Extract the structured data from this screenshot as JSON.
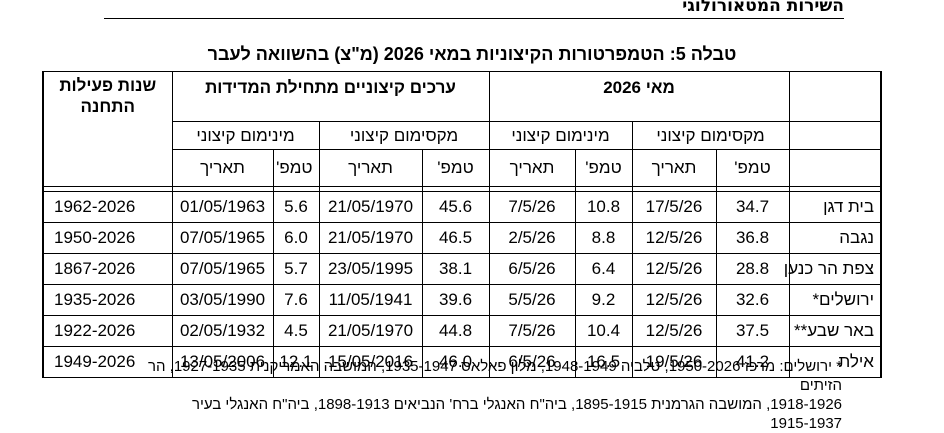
{
  "header": {
    "org": "השירות המטאורולוגי"
  },
  "table": {
    "title": "טבלה 5: הטמפרטורות הקיצוניות במאי 2026 (מ\"צ) בהשוואה לעבר",
    "group_may": "מאי 2026",
    "group_records": "ערכים קיצוניים מתחילת המדידות",
    "years_header": "שנות פעילות התחנה",
    "sub_max": "מקסימום קיצוני",
    "sub_min": "מינימום קיצוני",
    "col_temp": "טמפ'",
    "col_date": "תאריך",
    "rows": [
      {
        "station": "בית דגן",
        "may_max_t": "34.7",
        "may_max_d": "17/5/26",
        "may_min_t": "10.8",
        "may_min_d": "7/5/26",
        "rec_max_t": "45.6",
        "rec_max_d": "21/05/1970",
        "rec_min_t": "5.6",
        "rec_min_d": "01/05/1963",
        "years": "1962-2026"
      },
      {
        "station": "נגבה",
        "may_max_t": "36.8",
        "may_max_d": "12/5/26",
        "may_min_t": "8.8",
        "may_min_d": "2/5/26",
        "rec_max_t": "46.5",
        "rec_max_d": "21/05/1970",
        "rec_min_t": "6.0",
        "rec_min_d": "07/05/1965",
        "years": "1950-2026"
      },
      {
        "station": "צפת הר כנען",
        "may_max_t": "28.8",
        "may_max_d": "12/5/26",
        "may_min_t": "6.4",
        "may_min_d": "6/5/26",
        "rec_max_t": "38.1",
        "rec_max_d": "23/05/1995",
        "rec_min_t": "5.7",
        "rec_min_d": "07/05/1965",
        "years": "1867-2026"
      },
      {
        "station": "ירושלים*",
        "may_max_t": "32.6",
        "may_max_d": "12/5/26",
        "may_min_t": "9.2",
        "may_min_d": "5/5/26",
        "rec_max_t": "39.6",
        "rec_max_d": "11/05/1941",
        "rec_min_t": "7.6",
        "rec_min_d": "03/05/1990",
        "years": "1935-2026"
      },
      {
        "station": "באר שבע**",
        "may_max_t": "37.5",
        "may_max_d": "12/5/26",
        "may_min_t": "10.4",
        "may_min_d": "7/5/26",
        "rec_max_t": "44.8",
        "rec_max_d": "21/05/1970",
        "rec_min_t": "4.5",
        "rec_min_d": "02/05/1932",
        "years": "1922-2026"
      },
      {
        "station": "אילת",
        "may_max_t": "41.2",
        "may_max_d": "19/5/26",
        "may_min_t": "16.5",
        "may_min_d": "6/5/26",
        "rec_max_t": "46.0",
        "rec_max_d": "15/05/2016",
        "rec_min_t": "12.1",
        "rec_min_d": "13/05/2006",
        "years": "1949-2026"
      }
    ]
  },
  "footnote": {
    "line1": "* ירושלים: מרכז 1950-2026, טלביה 1948-1949, מלון פאלאס 1935-1947, המושבה האמריקנית 1927-1935, הר הזיתים",
    "line2": "1918-1926, המושבה הגרמנית 1895-1915, ביה\"ח האנגלי ברח' הנביאים 1898-1913, ביה\"ח האנגלי בעיר",
    "line3": "1915-1937"
  }
}
